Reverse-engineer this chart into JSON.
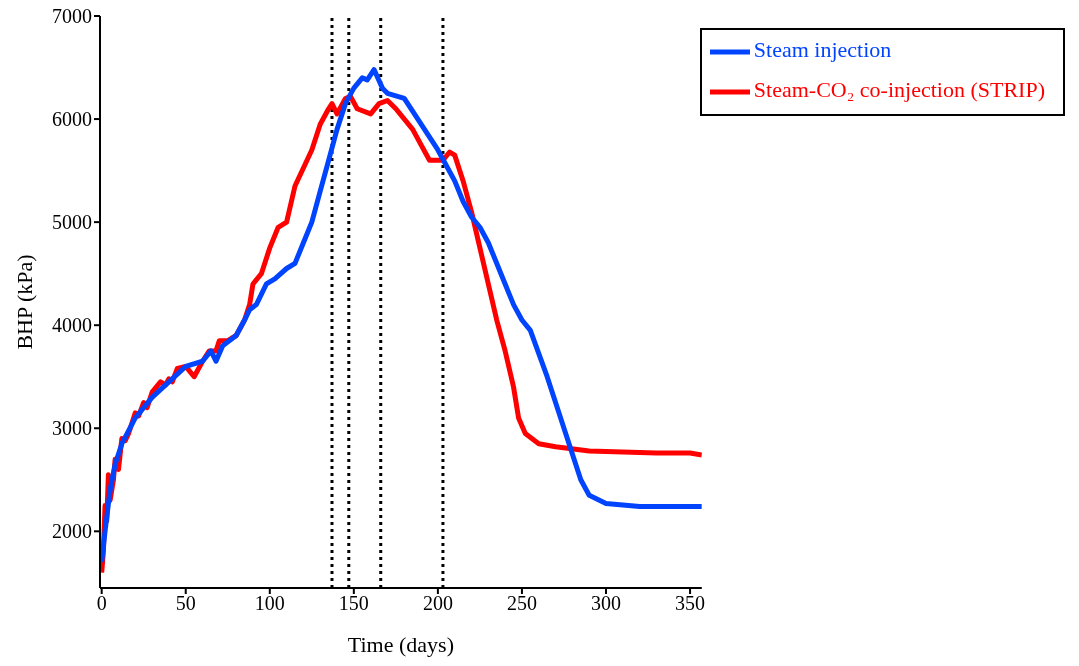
{
  "chart_data": {
    "type": "line",
    "xlabel": "Time (days)",
    "ylabel": "BHP (kPa)",
    "xlim": [
      -1,
      357
    ],
    "xticks": [
      0,
      50,
      100,
      150,
      200,
      250,
      300,
      350
    ],
    "ylim": [
      1450,
      7000
    ],
    "yticks": [
      2000,
      3000,
      4000,
      5000,
      6000,
      7000
    ],
    "grid": false,
    "legend": "top right",
    "marker": "none",
    "line_style": "solid",
    "series": [
      {
        "name": "Steam-CO₂ co-injection (STRIP)",
        "color": "#ff0000",
        "x": [
          0,
          1,
          2,
          3,
          4,
          5,
          7,
          8,
          10,
          12,
          14,
          16,
          20,
          22,
          25,
          27,
          30,
          35,
          38,
          40,
          42,
          45,
          50,
          55,
          60,
          64,
          68,
          70,
          75,
          80,
          85,
          88,
          90,
          95,
          100,
          105,
          110,
          115,
          125,
          130,
          135,
          137,
          140,
          145,
          148,
          152,
          160,
          165,
          170,
          175,
          185,
          190,
          195,
          200,
          203,
          207,
          210,
          215,
          220,
          225,
          230,
          235,
          240,
          245,
          248,
          252,
          260,
          270,
          290,
          310,
          330,
          350,
          357
        ],
        "values": [
          1600,
          1800,
          2250,
          2100,
          2550,
          2300,
          2500,
          2700,
          2600,
          2900,
          2880,
          2950,
          3150,
          3120,
          3250,
          3200,
          3350,
          3450,
          3420,
          3480,
          3450,
          3580,
          3600,
          3500,
          3650,
          3750,
          3750,
          3850,
          3850,
          3900,
          4050,
          4200,
          4400,
          4500,
          4750,
          4950,
          5000,
          5350,
          5700,
          5950,
          6100,
          6150,
          6050,
          6200,
          6220,
          6100,
          6050,
          6150,
          6180,
          6100,
          5900,
          5750,
          5600,
          5600,
          5600,
          5680,
          5650,
          5400,
          5100,
          4750,
          4400,
          4050,
          3750,
          3400,
          3100,
          2950,
          2850,
          2820,
          2780,
          2770,
          2760,
          2760,
          2740
        ]
      },
      {
        "name": "Steam injection",
        "color": "#0044ff",
        "x": [
          0,
          2,
          5,
          8,
          12,
          20,
          30,
          40,
          50,
          60,
          65,
          68,
          72,
          80,
          85,
          88,
          92,
          98,
          103,
          110,
          115,
          120,
          125,
          130,
          135,
          140,
          145,
          150,
          155,
          158,
          162,
          167,
          170,
          180,
          190,
          200,
          205,
          210,
          215,
          220,
          225,
          230,
          240,
          245,
          250,
          255,
          265,
          275,
          280,
          285,
          290,
          300,
          320,
          357
        ],
        "values": [
          1700,
          2000,
          2400,
          2650,
          2850,
          3100,
          3300,
          3450,
          3600,
          3650,
          3750,
          3650,
          3800,
          3900,
          4050,
          4150,
          4200,
          4400,
          4450,
          4550,
          4600,
          4800,
          5000,
          5300,
          5600,
          5900,
          6150,
          6300,
          6400,
          6380,
          6480,
          6300,
          6250,
          6200,
          5950,
          5700,
          5550,
          5400,
          5200,
          5050,
          4950,
          4800,
          4400,
          4200,
          4050,
          3950,
          3500,
          3000,
          2750,
          2500,
          2350,
          2270,
          2240,
          2240
        ]
      }
    ],
    "ref_lines": [
      {
        "axis": "x",
        "value": 137,
        "color": "#000000",
        "line_style": "dotted"
      },
      {
        "axis": "x",
        "value": 147,
        "color": "#000000",
        "line_style": "dotted"
      },
      {
        "axis": "x",
        "value": 166,
        "color": "#000000",
        "line_style": "dotted"
      },
      {
        "axis": "x",
        "value": 203,
        "color": "#000000",
        "line_style": "dotted"
      }
    ]
  }
}
